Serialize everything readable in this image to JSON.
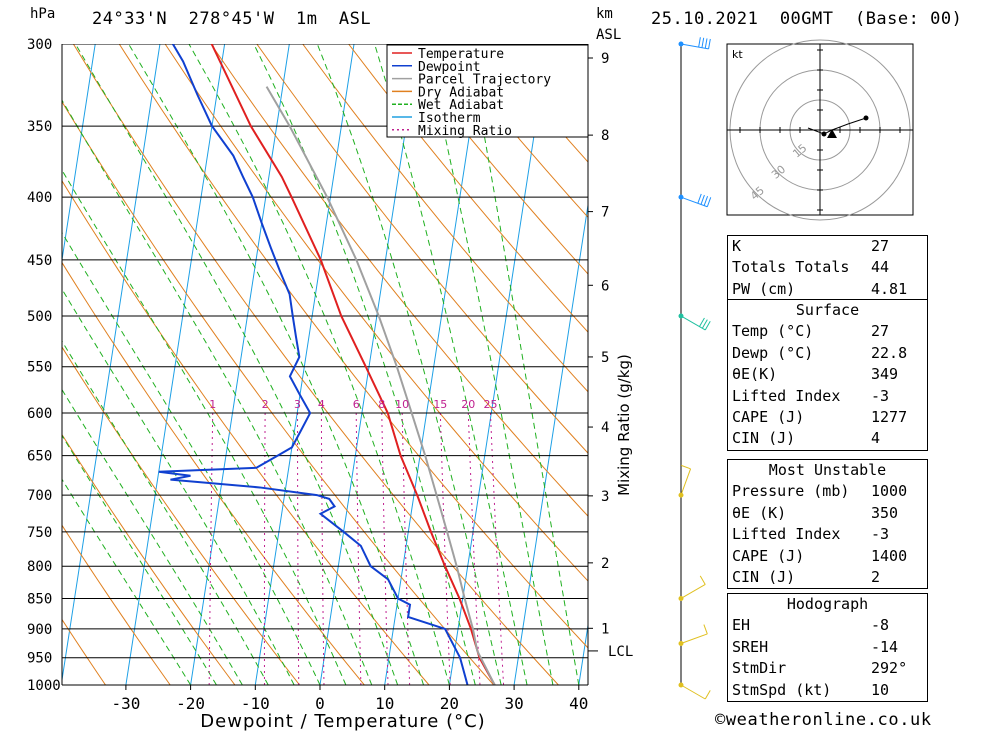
{
  "header": {
    "location": "24°33'N  278°45'W  1m  ASL",
    "datetime": "25.10.2021  00GMT  (Base: 00)",
    "pressure_unit": "hPa",
    "height_unit": "km",
    "height_unit2": "ASL"
  },
  "chart_data": {
    "type": "line",
    "subtype": "skew-t log-p",
    "xlabel": "Dewpoint / Temperature (°C)",
    "ylabel": "hPa",
    "mixing_ratio_axis_label": "Mixing Ratio (g/kg)",
    "pressure_levels": [
      300,
      350,
      400,
      450,
      500,
      550,
      600,
      650,
      700,
      750,
      800,
      850,
      900,
      950,
      1000
    ],
    "temperature_ticks": [
      -30,
      -20,
      -10,
      0,
      10,
      20,
      30,
      40
    ],
    "height_km_ticks": [
      1,
      2,
      3,
      4,
      5,
      6,
      7,
      8,
      9
    ],
    "lcl_label": "LCL",
    "lcl_pressure": 938,
    "mixing_ratio_labels": [
      "1",
      "2",
      "3",
      "4",
      "6",
      "8",
      "10",
      "15",
      "20",
      "25"
    ],
    "mixing_ratio_values": [
      1,
      2,
      3,
      4,
      6,
      8,
      10,
      15,
      20,
      25
    ],
    "legend": [
      {
        "name": "Temperature",
        "color": "#e02020"
      },
      {
        "name": "Dewpoint",
        "color": "#1040d0"
      },
      {
        "name": "Parcel Trajectory",
        "color": "#a0a0a0"
      },
      {
        "name": "Dry Adiabat",
        "color": "#e08020"
      },
      {
        "name": "Wet Adiabat",
        "color": "#20b020"
      },
      {
        "name": "Isotherm",
        "color": "#20a0e0"
      },
      {
        "name": "Mixing Ratio",
        "color": "#c02090"
      }
    ],
    "series": [
      {
        "name": "Temperature",
        "points": [
          [
            1000,
            27
          ],
          [
            950,
            24
          ],
          [
            900,
            22
          ],
          [
            850,
            19.5
          ],
          [
            800,
            16.5
          ],
          [
            750,
            13.5
          ],
          [
            700,
            10.5
          ],
          [
            650,
            7
          ],
          [
            600,
            4
          ],
          [
            550,
            -0.5
          ],
          [
            500,
            -5.5
          ],
          [
            450,
            -10
          ],
          [
            400,
            -16
          ],
          [
            385,
            -18
          ],
          [
            350,
            -24
          ],
          [
            300,
            -32
          ]
        ]
      },
      {
        "name": "Dewpoint",
        "points": [
          [
            1000,
            22.8
          ],
          [
            950,
            21
          ],
          [
            900,
            18
          ],
          [
            880,
            12
          ],
          [
            860,
            12
          ],
          [
            850,
            10
          ],
          [
            820,
            8
          ],
          [
            800,
            5
          ],
          [
            770,
            3
          ],
          [
            750,
            0
          ],
          [
            725,
            -4
          ],
          [
            715,
            -2
          ],
          [
            705,
            -3
          ],
          [
            700,
            -5
          ],
          [
            690,
            -14
          ],
          [
            680,
            -28
          ],
          [
            675,
            -25
          ],
          [
            670,
            -30
          ],
          [
            665,
            -15
          ],
          [
            650,
            -12
          ],
          [
            640,
            -10
          ],
          [
            620,
            -9
          ],
          [
            600,
            -8
          ],
          [
            580,
            -10
          ],
          [
            560,
            -12
          ],
          [
            540,
            -11
          ],
          [
            520,
            -12
          ],
          [
            500,
            -13
          ],
          [
            480,
            -14
          ],
          [
            460,
            -16
          ],
          [
            440,
            -18
          ],
          [
            420,
            -20
          ],
          [
            400,
            -22
          ],
          [
            385,
            -24
          ],
          [
            370,
            -26
          ],
          [
            350,
            -30
          ],
          [
            330,
            -33
          ],
          [
            310,
            -36
          ],
          [
            300,
            -38
          ]
        ]
      },
      {
        "name": "Parcel Trajectory",
        "points": [
          [
            1000,
            27
          ],
          [
            938,
            23.5
          ],
          [
            900,
            22.3
          ],
          [
            850,
            20.3
          ],
          [
            800,
            18.3
          ],
          [
            750,
            16
          ],
          [
            700,
            13.5
          ],
          [
            650,
            10.8
          ],
          [
            600,
            7.7
          ],
          [
            550,
            4.3
          ],
          [
            500,
            0.3
          ],
          [
            450,
            -4.5
          ],
          [
            400,
            -10.5
          ],
          [
            350,
            -18
          ],
          [
            325,
            -22.5
          ]
        ]
      }
    ],
    "wind_barbs": [
      {
        "pressure": 300,
        "direction": 280,
        "speed_kt": 40
      },
      {
        "pressure": 400,
        "direction": 290,
        "speed_kt": 35
      },
      {
        "pressure": 500,
        "direction": 300,
        "speed_kt": 25
      },
      {
        "pressure": 700,
        "direction": 200,
        "speed_kt": 10
      },
      {
        "pressure": 850,
        "direction": 240,
        "speed_kt": 10
      },
      {
        "pressure": 925,
        "direction": 250,
        "speed_kt": 10
      },
      {
        "pressure": 1000,
        "direction": 300,
        "speed_kt": 10
      }
    ],
    "hodograph": {
      "unit": "kt",
      "ring_labels": [
        "15",
        "30",
        "45"
      ],
      "ring_values": [
        15,
        30,
        45
      ],
      "points": [
        [
          -6,
          1
        ],
        [
          2,
          -2
        ],
        [
          6,
          0
        ],
        [
          14,
          3
        ],
        [
          23,
          6
        ]
      ],
      "storm_motion": [
        3,
        -2
      ]
    }
  },
  "indices": {
    "rows": [
      {
        "label": "K",
        "value": "27"
      },
      {
        "label": "Totals Totals",
        "value": "44"
      },
      {
        "label": "PW (cm)",
        "value": "4.81"
      }
    ]
  },
  "surface": {
    "title": "Surface",
    "rows": [
      {
        "label": "Temp (°C)",
        "value": "27"
      },
      {
        "label": "Dewp (°C)",
        "value": "22.8"
      },
      {
        "label": "θE(K)",
        "value": "349"
      },
      {
        "label": "Lifted Index",
        "value": "-3"
      },
      {
        "label": "CAPE (J)",
        "value": "1277"
      },
      {
        "label": "CIN (J)",
        "value": "4"
      }
    ]
  },
  "most_unstable": {
    "title": "Most Unstable",
    "rows": [
      {
        "label": "Pressure (mb)",
        "value": "1000"
      },
      {
        "label": "θE (K)",
        "value": "350"
      },
      {
        "label": "Lifted Index",
        "value": "-3"
      },
      {
        "label": "CAPE (J)",
        "value": "1400"
      },
      {
        "label": "CIN (J)",
        "value": "2"
      }
    ]
  },
  "hodograph_table": {
    "title": "Hodograph",
    "rows": [
      {
        "label": "EH",
        "value": "-8"
      },
      {
        "label": "SREH",
        "value": "-14"
      },
      {
        "label": "StmDir",
        "value": "292°"
      },
      {
        "label": "StmSpd (kt)",
        "value": "10"
      }
    ]
  },
  "footer": {
    "copyright": "©weatheronline.co.uk"
  }
}
